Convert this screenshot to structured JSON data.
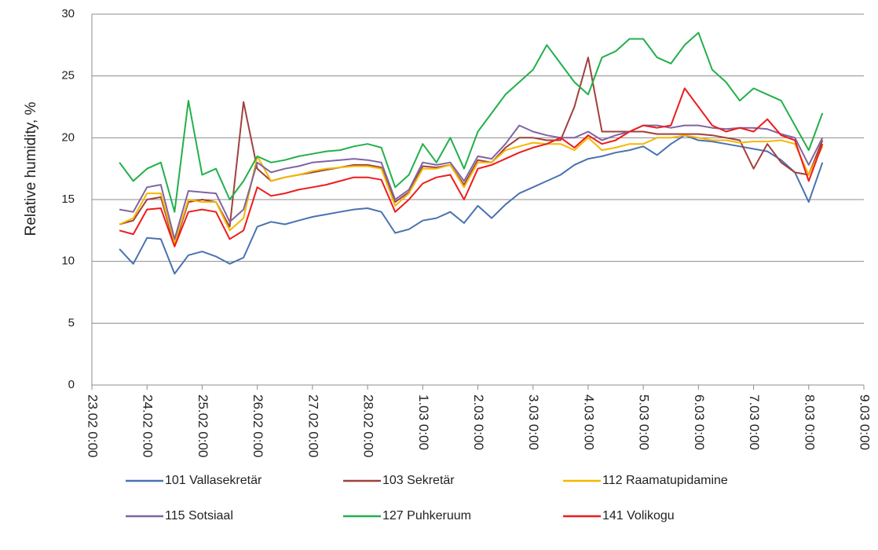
{
  "chart_data": {
    "type": "line",
    "y_label": "Relative humidity, %",
    "ylim": [
      0,
      30
    ],
    "yticks": [
      0,
      5,
      10,
      15,
      20,
      25,
      30
    ],
    "xlim": [
      "23.02 0:00",
      "9.03 0:00"
    ],
    "xticks": [
      "23.02 0:00",
      "24.02 0:00",
      "25.02 0:00",
      "26.02 0:00",
      "27.02 0:00",
      "28.02 0:00",
      "1.03 0:00",
      "2.03 0:00",
      "3.03 0:00",
      "4.03 0:00",
      "5.03 0:00",
      "6.03 0:00",
      "7.03 0:00",
      "8.03 0:00",
      "9.03 0:00"
    ],
    "grid": true,
    "x": [
      "23.02 12:00",
      "23.02 18:00",
      "24.02 0:00",
      "24.02 6:00",
      "24.02 12:00",
      "24.02 18:00",
      "25.02 0:00",
      "25.02 6:00",
      "25.02 12:00",
      "25.02 18:00",
      "26.02 0:00",
      "26.02 6:00",
      "26.02 12:00",
      "26.02 18:00",
      "27.02 0:00",
      "27.02 6:00",
      "27.02 12:00",
      "27.02 18:00",
      "28.02 0:00",
      "28.02 6:00",
      "28.02 12:00",
      "28.02 18:00",
      "1.03 0:00",
      "1.03 6:00",
      "1.03 12:00",
      "1.03 18:00",
      "2.03 0:00",
      "2.03 6:00",
      "2.03 12:00",
      "2.03 18:00",
      "3.03 0:00",
      "3.03 6:00",
      "3.03 12:00",
      "3.03 18:00",
      "4.03 0:00",
      "4.03 6:00",
      "4.03 12:00",
      "4.03 18:00",
      "5.03 0:00",
      "5.03 6:00",
      "5.03 12:00",
      "5.03 18:00",
      "6.03 0:00",
      "6.03 6:00",
      "6.03 12:00",
      "6.03 18:00",
      "7.03 0:00",
      "7.03 6:00",
      "7.03 12:00",
      "7.03 18:00",
      "8.03 0:00",
      "8.03 6:00"
    ],
    "series": [
      {
        "name": "101 Vallasekretär",
        "color": "#4a72b0",
        "values": [
          11.0,
          9.8,
          11.9,
          11.8,
          9.0,
          10.5,
          10.8,
          10.4,
          9.8,
          10.3,
          12.8,
          13.2,
          13.0,
          13.3,
          13.6,
          13.8,
          14.0,
          14.2,
          14.3,
          14.0,
          12.3,
          12.6,
          13.3,
          13.5,
          14.0,
          13.1,
          14.5,
          13.5,
          14.6,
          15.5,
          16.0,
          16.5,
          17.0,
          17.8,
          18.3,
          18.5,
          18.8,
          19.0,
          19.3,
          18.6,
          19.5,
          20.2,
          19.8,
          19.7,
          19.5,
          19.3,
          19.1,
          18.9,
          18.2,
          17.2,
          14.8,
          18.0
        ]
      },
      {
        "name": "103 Sekretär",
        "color": "#a0403c",
        "values": [
          13.0,
          13.3,
          15.0,
          15.2,
          11.3,
          14.8,
          15.0,
          14.8,
          12.8,
          22.9,
          17.5,
          16.5,
          16.8,
          17.0,
          17.2,
          17.4,
          17.6,
          17.8,
          17.8,
          17.6,
          14.8,
          15.6,
          17.7,
          17.6,
          17.8,
          16.2,
          18.2,
          18.0,
          19.2,
          20.0,
          20.0,
          19.8,
          19.8,
          22.5,
          26.5,
          20.5,
          20.5,
          20.5,
          20.5,
          20.3,
          20.3,
          20.3,
          20.3,
          20.2,
          20.0,
          19.8,
          17.5,
          19.5,
          18.0,
          17.2,
          17.0,
          19.8
        ]
      },
      {
        "name": "112 Raamatupidamine",
        "color": "#f5b800",
        "values": [
          13.0,
          13.5,
          15.5,
          15.5,
          11.5,
          15.0,
          14.8,
          14.8,
          12.5,
          13.5,
          18.5,
          16.5,
          16.8,
          17.0,
          17.3,
          17.5,
          17.6,
          17.7,
          17.7,
          17.5,
          14.5,
          15.5,
          17.5,
          17.5,
          17.8,
          16.0,
          18.0,
          18.0,
          19.0,
          19.3,
          19.6,
          19.5,
          19.5,
          19.0,
          20.0,
          19.0,
          19.2,
          19.5,
          19.5,
          20.0,
          20.0,
          20.2,
          20.0,
          19.8,
          19.8,
          19.6,
          19.7,
          19.7,
          19.8,
          19.5,
          17.0,
          19.3
        ]
      },
      {
        "name": "115 Sotsiaal",
        "color": "#8064a2",
        "values": [
          14.2,
          14.0,
          16.0,
          16.2,
          11.8,
          15.7,
          15.6,
          15.5,
          13.2,
          14.2,
          18.0,
          17.2,
          17.5,
          17.7,
          18.0,
          18.1,
          18.2,
          18.3,
          18.2,
          18.0,
          15.0,
          15.8,
          18.0,
          17.8,
          18.0,
          16.5,
          18.5,
          18.3,
          19.5,
          21.0,
          20.5,
          20.2,
          20.0,
          20.0,
          20.5,
          19.8,
          20.2,
          20.5,
          21.0,
          21.0,
          20.8,
          21.0,
          21.0,
          20.8,
          20.7,
          20.8,
          20.8,
          20.7,
          20.3,
          20.0,
          17.8,
          20.0
        ]
      },
      {
        "name": "127 Puhkeruum",
        "color": "#22b04b",
        "values": [
          18.0,
          16.5,
          17.5,
          18.0,
          14.0,
          23.0,
          17.0,
          17.5,
          15.0,
          16.5,
          18.5,
          18.0,
          18.2,
          18.5,
          18.7,
          18.9,
          19.0,
          19.3,
          19.5,
          19.2,
          16.0,
          17.0,
          19.5,
          18.0,
          20.0,
          17.5,
          20.5,
          22.0,
          23.5,
          24.5,
          25.5,
          27.5,
          26.0,
          24.5,
          23.5,
          26.5,
          27.0,
          28.0,
          28.0,
          26.5,
          26.0,
          27.5,
          28.5,
          25.5,
          24.5,
          23.0,
          24.0,
          23.5,
          23.0,
          21.0,
          19.0,
          22.0
        ]
      },
      {
        "name": "141 Volikogu",
        "color": "#ee1c1c",
        "values": [
          12.5,
          12.2,
          14.2,
          14.3,
          11.2,
          14.0,
          14.2,
          14.0,
          11.8,
          12.5,
          16.0,
          15.3,
          15.5,
          15.8,
          16.0,
          16.2,
          16.5,
          16.8,
          16.8,
          16.6,
          14.0,
          15.0,
          16.3,
          16.8,
          17.0,
          15.0,
          17.5,
          17.8,
          18.3,
          18.8,
          19.2,
          19.5,
          20.0,
          19.2,
          20.2,
          19.5,
          19.8,
          20.5,
          21.0,
          20.8,
          21.0,
          24.0,
          22.5,
          21.0,
          20.5,
          20.8,
          20.5,
          21.5,
          20.2,
          19.8,
          16.5,
          19.5
        ]
      }
    ]
  }
}
